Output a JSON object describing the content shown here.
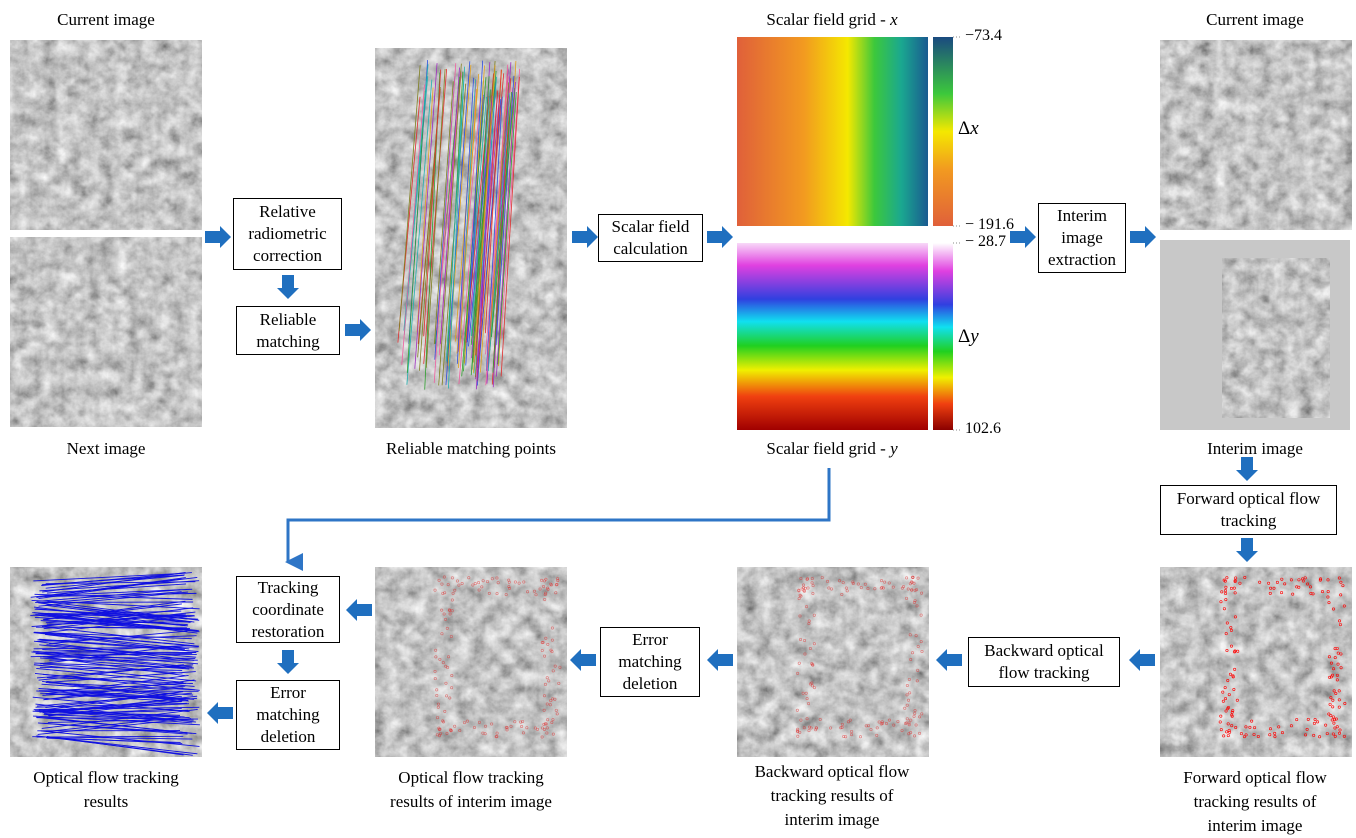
{
  "captions": [
    {
      "lines": [
        "Current image"
      ]
    },
    {
      "lines": [
        "Next image"
      ]
    },
    {
      "lines": [
        "Reliable matching points"
      ]
    },
    {
      "lines": [
        "Scalar field grid - "
      ],
      "variable": "x"
    },
    {
      "lines": [
        "Scalar field grid - "
      ],
      "variable": "y"
    },
    {
      "lines": [
        "Current image"
      ]
    },
    {
      "lines": [
        "Interim image"
      ]
    },
    {
      "lines": [
        "Forward optical flow",
        "tracking results of",
        "interim image"
      ]
    },
    {
      "lines": [
        "Backward optical flow",
        "tracking results of",
        "interim image"
      ]
    },
    {
      "lines": [
        "Optical flow tracking",
        "results of interim image"
      ]
    },
    {
      "lines": [
        "Optical flow tracking",
        "results"
      ]
    }
  ],
  "boxes": [
    {
      "lines": [
        "Relative",
        "radiometric",
        "correction"
      ]
    },
    {
      "lines": [
        "Reliable",
        "matching"
      ]
    },
    {
      "lines": [
        "Scalar field",
        "calculation"
      ]
    },
    {
      "lines": [
        "Interim",
        "image",
        "extraction"
      ]
    },
    {
      "lines": [
        "Forward optical flow",
        "tracking"
      ]
    },
    {
      "lines": [
        "Backward optical",
        "flow tracking"
      ]
    },
    {
      "lines": [
        "Error",
        "matching",
        "deletion"
      ]
    },
    {
      "lines": [
        "Tracking",
        "coordinate",
        "restoration"
      ]
    },
    {
      "lines": [
        "Error",
        "matching",
        "deletion"
      ]
    }
  ],
  "colorbars": [
    {
      "top": "−73.4",
      "bottom": "− 191.6",
      "symbol": "Δ",
      "variable": "x"
    },
    {
      "top": "− 28.7",
      "bottom": "102.6",
      "symbol": "Δ",
      "variable": "y"
    }
  ]
}
